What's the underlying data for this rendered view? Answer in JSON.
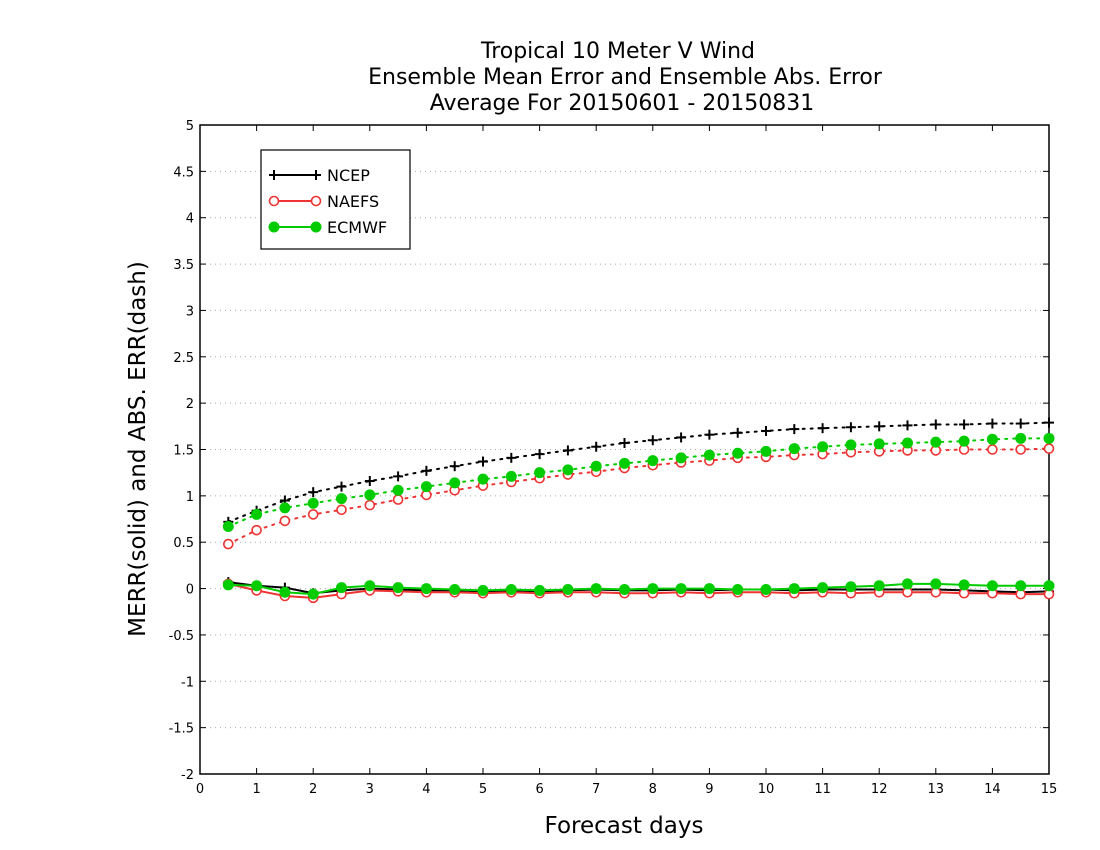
{
  "chart_data": {
    "type": "line",
    "title_lines": [
      "Tropical 10 Meter V Wind",
      "Ensemble Mean Error and Ensemble Abs. Error",
      "Average For 20150601 - 20150831"
    ],
    "xlabel": "Forecast days",
    "ylabel": "MERR(solid) and ABS. ERR(dash)",
    "xlim": [
      0,
      15
    ],
    "ylim": [
      -2,
      5
    ],
    "x_ticks": [
      0,
      1,
      2,
      3,
      4,
      5,
      6,
      7,
      8,
      9,
      10,
      11,
      12,
      13,
      14,
      15
    ],
    "y_ticks": [
      -2,
      -1.5,
      -1,
      -0.5,
      0,
      0.5,
      1,
      1.5,
      2,
      2.5,
      3,
      3.5,
      4,
      4.5,
      5
    ],
    "y_tick_labels": [
      "-2",
      "-1.5",
      "-1",
      "-0.5",
      "0",
      "0.5",
      "1",
      "1.5",
      "2",
      "2.5",
      "3",
      "3.5",
      "4",
      "4.5",
      "5"
    ],
    "grid": "horizontal dotted",
    "legend_position": "top-left",
    "x": [
      0.5,
      1,
      1.5,
      2,
      2.5,
      3,
      3.5,
      4,
      4.5,
      5,
      5.5,
      6,
      6.5,
      7,
      7.5,
      8,
      8.5,
      9,
      9.5,
      10,
      10.5,
      11,
      11.5,
      12,
      12.5,
      13,
      13.5,
      14,
      14.5,
      15
    ],
    "series": [
      {
        "name": "NCEP",
        "color": "#000000",
        "marker": "plus",
        "merr": [
          0.07,
          0.03,
          0.01,
          -0.05,
          -0.02,
          0.0,
          -0.01,
          -0.02,
          -0.02,
          -0.03,
          -0.02,
          -0.03,
          -0.02,
          -0.01,
          -0.02,
          -0.02,
          -0.01,
          -0.02,
          -0.01,
          -0.01,
          -0.02,
          -0.01,
          -0.01,
          -0.01,
          -0.01,
          -0.01,
          -0.02,
          -0.03,
          -0.04,
          -0.03
        ],
        "abs_err": [
          0.72,
          0.84,
          0.95,
          1.04,
          1.1,
          1.16,
          1.21,
          1.27,
          1.32,
          1.37,
          1.41,
          1.45,
          1.49,
          1.53,
          1.57,
          1.6,
          1.63,
          1.66,
          1.68,
          1.7,
          1.72,
          1.73,
          1.74,
          1.75,
          1.76,
          1.77,
          1.77,
          1.78,
          1.78,
          1.79
        ]
      },
      {
        "name": "NAEFS",
        "color": "#ee3333",
        "marker": "open-circle",
        "merr": [
          0.05,
          -0.02,
          -0.08,
          -0.1,
          -0.06,
          -0.02,
          -0.03,
          -0.04,
          -0.04,
          -0.05,
          -0.04,
          -0.05,
          -0.04,
          -0.04,
          -0.05,
          -0.05,
          -0.04,
          -0.05,
          -0.04,
          -0.04,
          -0.05,
          -0.04,
          -0.05,
          -0.04,
          -0.04,
          -0.04,
          -0.05,
          -0.05,
          -0.06,
          -0.06
        ],
        "abs_err": [
          0.48,
          0.63,
          0.73,
          0.8,
          0.85,
          0.9,
          0.96,
          1.01,
          1.06,
          1.11,
          1.15,
          1.19,
          1.23,
          1.26,
          1.3,
          1.33,
          1.36,
          1.38,
          1.41,
          1.42,
          1.44,
          1.45,
          1.47,
          1.48,
          1.49,
          1.49,
          1.5,
          1.5,
          1.5,
          1.51
        ]
      },
      {
        "name": "ECMWF",
        "color": "#00cc00",
        "marker": "filled-circle",
        "merr": [
          0.04,
          0.03,
          -0.04,
          -0.06,
          0.01,
          0.03,
          0.01,
          0.0,
          -0.01,
          -0.02,
          -0.01,
          -0.02,
          -0.01,
          0.0,
          -0.01,
          0.0,
          0.0,
          0.0,
          -0.01,
          -0.01,
          0.0,
          0.01,
          0.02,
          0.03,
          0.05,
          0.05,
          0.04,
          0.03,
          0.03,
          0.03
        ],
        "abs_err": [
          0.67,
          0.8,
          0.87,
          0.92,
          0.97,
          1.01,
          1.06,
          1.1,
          1.14,
          1.18,
          1.21,
          1.25,
          1.28,
          1.32,
          1.35,
          1.38,
          1.41,
          1.44,
          1.46,
          1.48,
          1.51,
          1.53,
          1.55,
          1.56,
          1.57,
          1.58,
          1.59,
          1.61,
          1.62,
          1.62
        ]
      }
    ]
  }
}
